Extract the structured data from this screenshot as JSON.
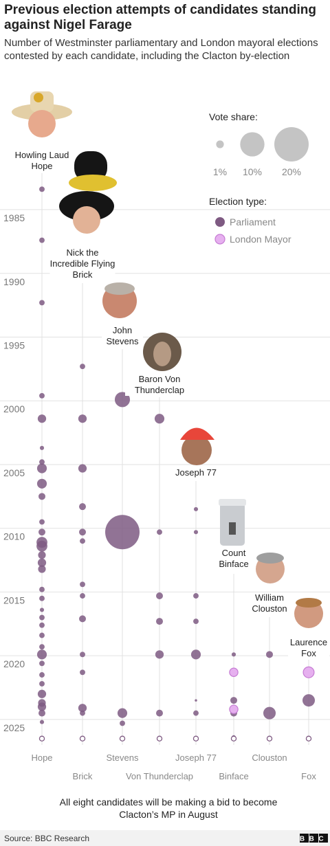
{
  "chart_data": {
    "type": "bubble",
    "title": "Previous election attempts of candidates standing against Nigel Farage",
    "subtitle": "Number of Westminster parliamentary and London mayoral elections contested by each candidate, including the Clacton by-election",
    "categories": [
      "Hope",
      "Brick",
      "Stevens",
      "Von Thunderclap",
      "Joseph 77",
      "Binface",
      "Clouston",
      "Fox"
    ],
    "full_names": [
      "Howling Laud Hope",
      "Nick the Incredible Flying Brick",
      "John Stevens",
      "Baron Von Thunderclap",
      "Joseph 77",
      "Count Binface",
      "William Clouston",
      "Laurence Fox"
    ],
    "ylim": [
      1982.6,
      2027
    ],
    "yticks": [
      1985,
      1990,
      1995,
      2000,
      2005,
      2010,
      2015,
      2020,
      2025
    ],
    "grid": true,
    "legend_title": "Election type:",
    "size_legend": {
      "title": "Vote share:",
      "values": [
        1,
        10,
        20
      ],
      "labels": [
        "1%",
        "10%",
        "20%"
      ]
    },
    "series": [
      {
        "name": "Parliament",
        "color": "#7e5a82",
        "x": [
          "Hope",
          "Hope",
          "Hope",
          "Hope",
          "Hope",
          "Hope",
          "Hope",
          "Hope",
          "Hope",
          "Hope",
          "Hope",
          "Hope",
          "Hope",
          "Hope",
          "Hope",
          "Hope",
          "Hope",
          "Hope",
          "Hope",
          "Hope",
          "Hope",
          "Hope",
          "Hope",
          "Hope",
          "Hope",
          "Hope",
          "Hope",
          "Hope",
          "Hope",
          "Hope",
          "Hope",
          "Hope",
          "Hope",
          "Brick",
          "Brick",
          "Brick",
          "Brick",
          "Brick",
          "Brick",
          "Brick",
          "Brick",
          "Brick",
          "Brick",
          "Brick",
          "Brick",
          "Brick",
          "Stevens",
          "Stevens",
          "Stevens",
          "Stevens",
          "Von Thunderclap",
          "Von Thunderclap",
          "Von Thunderclap",
          "Von Thunderclap",
          "Von Thunderclap",
          "Von Thunderclap",
          "Joseph 77",
          "Joseph 77",
          "Joseph 77",
          "Joseph 77",
          "Joseph 77",
          "Joseph 77",
          "Joseph 77",
          "Binface",
          "Binface",
          "Binface",
          "Binface",
          "Clouston",
          "Clouston",
          "Fox"
        ],
        "y": [
          1983.4,
          1987.4,
          1992.3,
          1999.6,
          2001.4,
          2003.7,
          2004.8,
          2005.3,
          2006.5,
          2007.5,
          2009.5,
          2010.3,
          2011.1,
          2011.4,
          2012.1,
          2012.7,
          2013.2,
          2014.8,
          2015.5,
          2016.4,
          2017.0,
          2017.6,
          2018.4,
          2019.3,
          2019.9,
          2020.6,
          2021.5,
          2022.2,
          2023.0,
          2023.7,
          2024.0,
          2024.5,
          2025.2,
          1997.3,
          2001.4,
          2005.3,
          2008.3,
          2010.3,
          2011.0,
          2014.4,
          2015.3,
          2017.1,
          2019.9,
          2021.3,
          2024.1,
          2024.5,
          1999.9,
          2010.3,
          2024.5,
          2025.3,
          2001.4,
          2010.3,
          2015.3,
          2017.3,
          2019.9,
          2024.5,
          2008.5,
          2010.3,
          2015.3,
          2017.3,
          2019.9,
          2023.5,
          2024.5,
          2019.9,
          2023.5,
          2024.5,
          2026.4,
          2019.9,
          2024.5,
          2023.5
        ],
        "sizes": [
          0.5,
          0.5,
          0.5,
          0.5,
          1.2,
          0.3,
          0.5,
          1.6,
          1.6,
          0.8,
          0.5,
          0.8,
          2,
          2,
          1,
          1.2,
          1,
          0.5,
          0.5,
          0.3,
          0.5,
          0.5,
          0.5,
          0.5,
          1.6,
          0.5,
          0.5,
          0.5,
          1.2,
          1,
          1.2,
          0.8,
          0.3,
          0.5,
          1.2,
          1.2,
          0.8,
          0.8,
          0.5,
          0.5,
          0.5,
          0.8,
          0.5,
          0.5,
          1.2,
          0.5,
          3.9,
          20,
          1.6,
          0.5,
          1.6,
          0.5,
          0.8,
          0.8,
          1.2,
          0.8,
          0.3,
          0.3,
          0.5,
          0.5,
          1.6,
          0.1,
          0.5,
          0.3,
          0.8,
          0.8,
          0.3,
          0.8,
          2.6,
          2.6
        ]
      },
      {
        "name": "London Mayor",
        "color": "#e6b0ef",
        "x": [
          "Binface",
          "Binface",
          "Fox"
        ],
        "y": [
          2021.3,
          2024.2,
          2021.3
        ],
        "sizes": [
          1.2,
          1.2,
          2
        ]
      },
      {
        "color": "#7e5a82",
        "hollow": true,
        "x": [
          "Hope",
          "Brick",
          "Stevens",
          "Von Thunderclap",
          "Joseph 77",
          "Binface",
          "Clouston",
          "Fox"
        ],
        "y": [
          2026.5,
          2026.5,
          2026.5,
          2026.5,
          2026.5,
          2026.5,
          2026.5,
          2026.5
        ],
        "sizes": [
          0.4,
          0.4,
          0.4,
          0.4,
          0.4,
          0.4,
          0.4,
          0.4
        ]
      }
    ],
    "note": "All eight candidates will be making a bid to become Clacton’s MP in August",
    "source": "Source: BBC Research",
    "logo": "BBC"
  }
}
